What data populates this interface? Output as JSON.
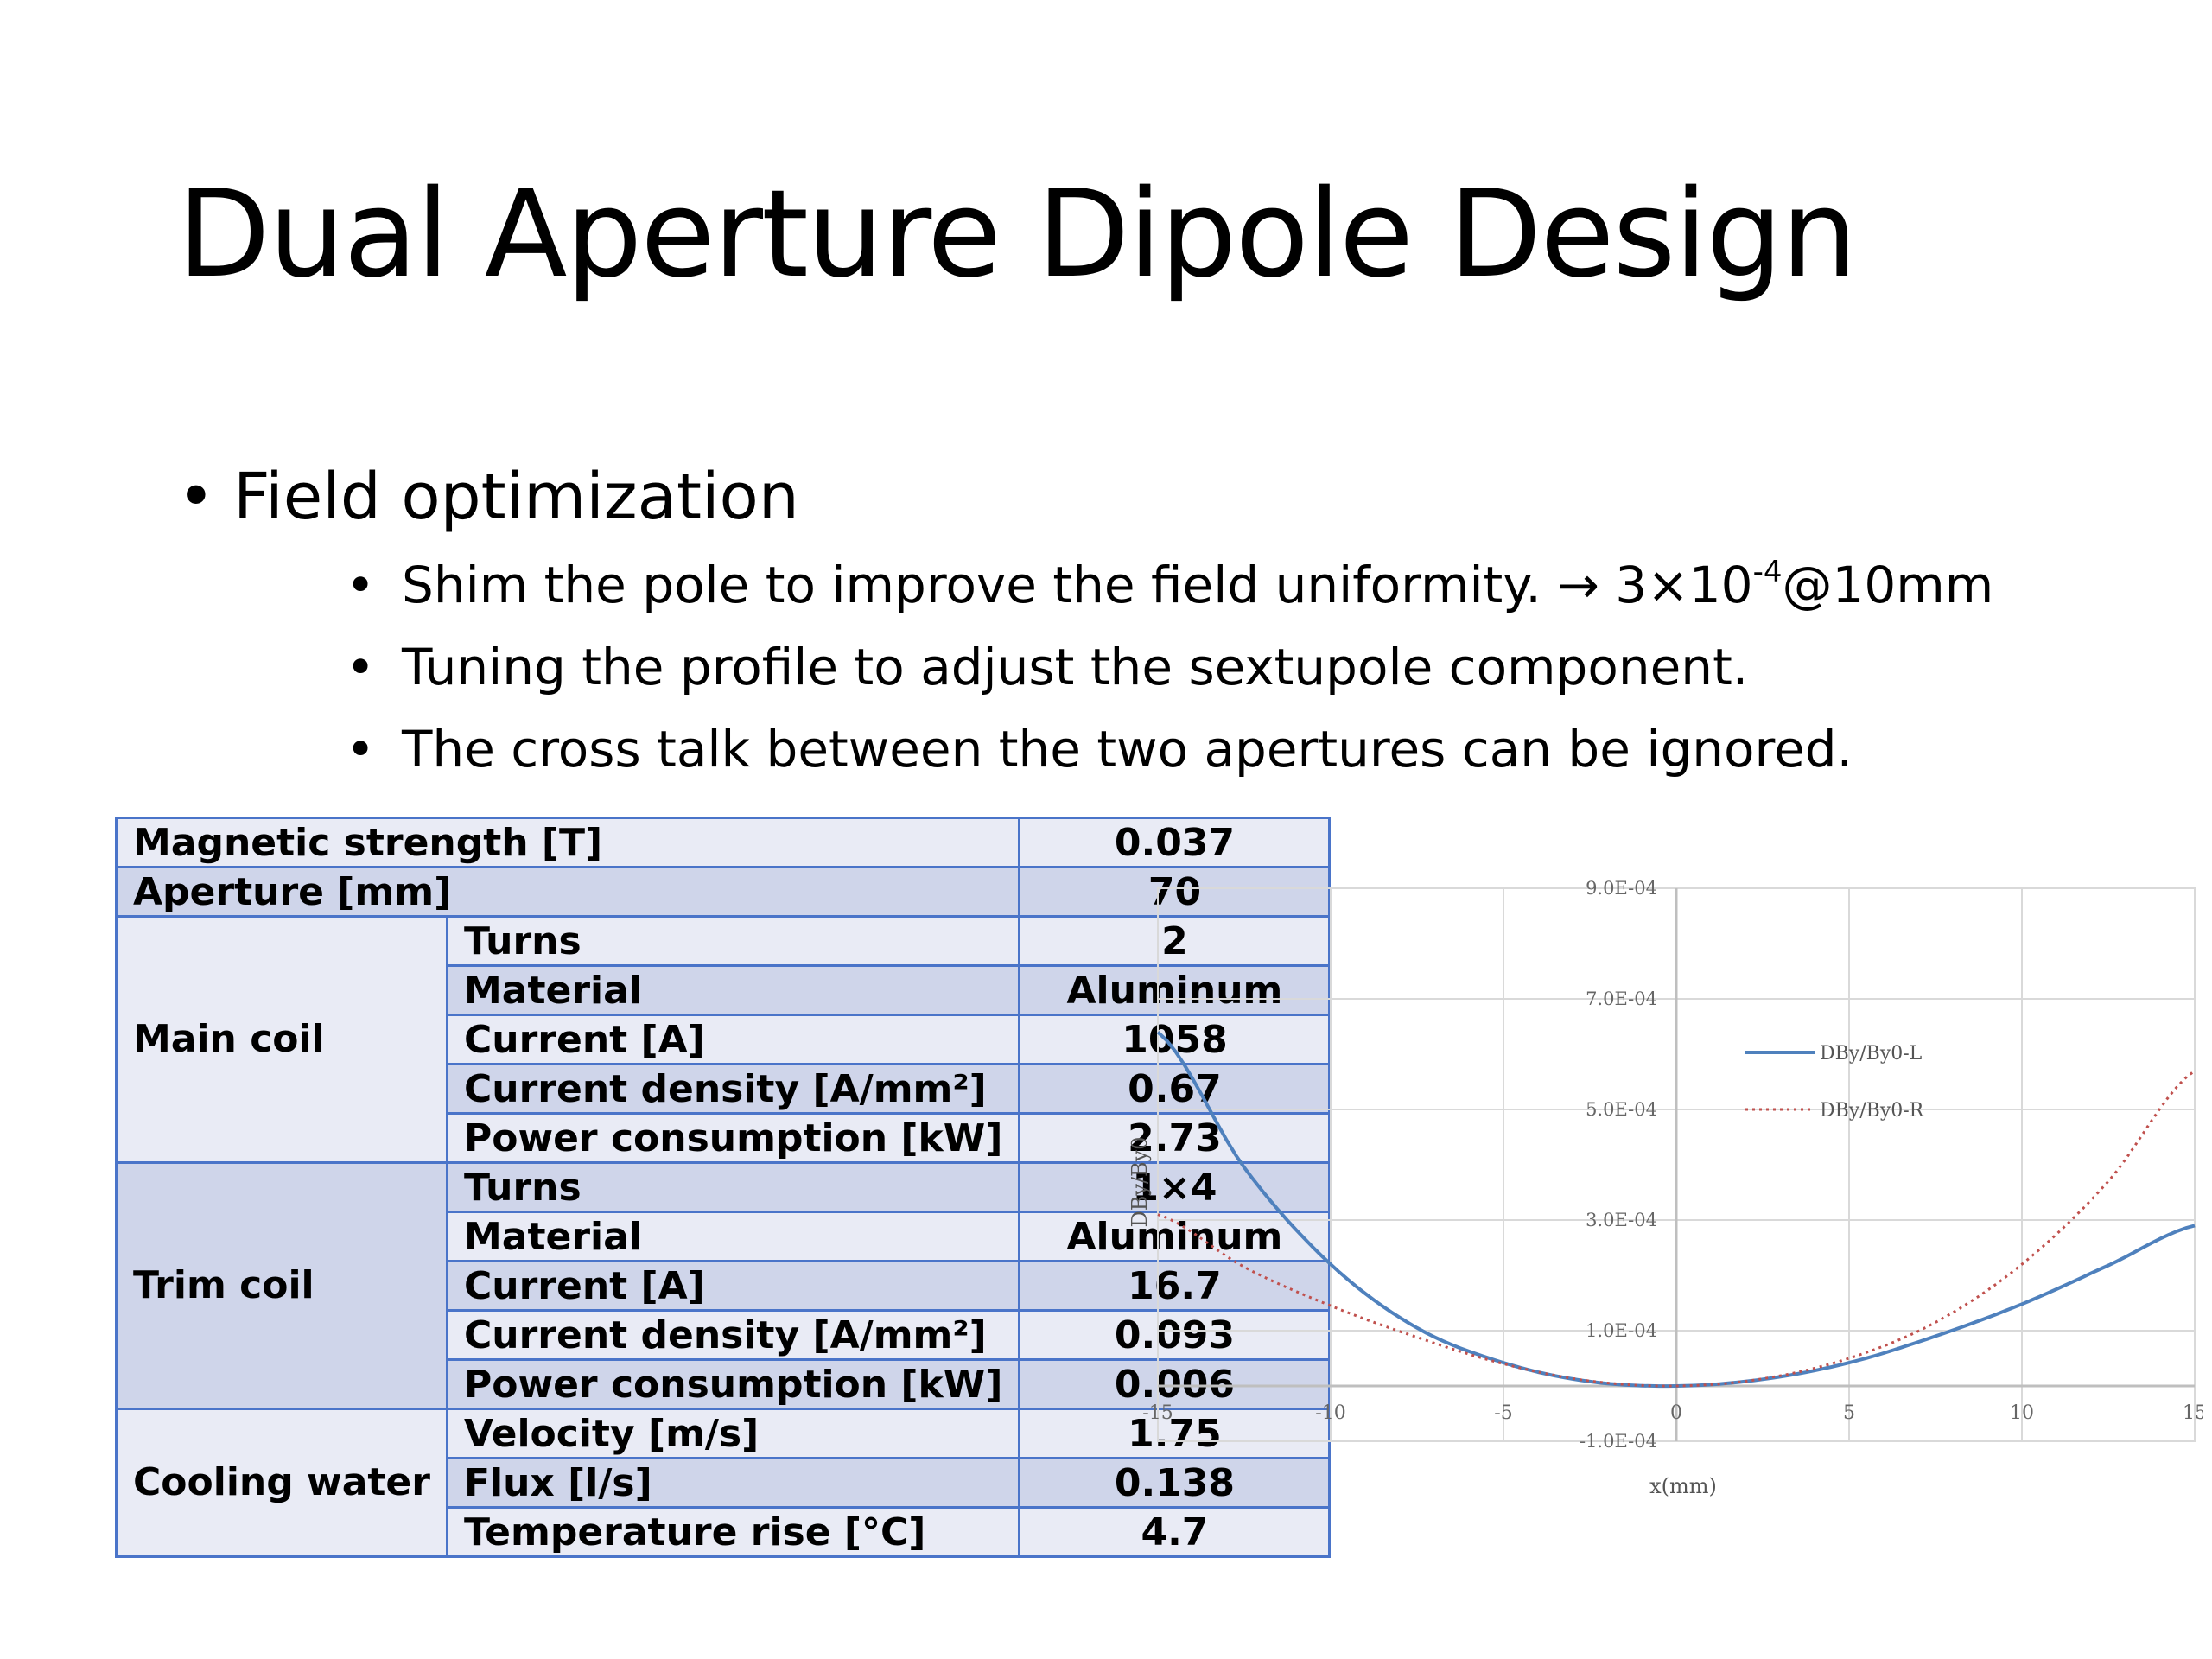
{
  "slide": {
    "title": "Dual Aperture Dipole Design",
    "bullet": "Field optimization",
    "sub_bullets": {
      "b1_pre": "Shim the pole to improve the field uniformity. → 3×10",
      "b1_exp": "-4",
      "b1_post": "@10mm",
      "b2": "Tuning the profile to adjust the sextupole component.",
      "b3": "The cross talk between the two apertures can be ignored."
    }
  },
  "table": {
    "r1": {
      "label": "Magnetic strength [T]",
      "value": "0.037"
    },
    "r2": {
      "label": "Aperture [mm]",
      "value": "70"
    },
    "main_coil": {
      "group": "Main coil",
      "rows": [
        {
          "label": "Turns",
          "value": "2"
        },
        {
          "label": "Material",
          "value": "Aluminum"
        },
        {
          "label": "Current [A]",
          "value": "1058"
        },
        {
          "label": "Current density [A/mm²]",
          "value": "0.67"
        },
        {
          "label": "Power consumption [kW]",
          "value": "2.73"
        }
      ]
    },
    "trim_coil": {
      "group": "Trim coil",
      "rows": [
        {
          "label": "Turns",
          "value": "1×4"
        },
        {
          "label": "Material",
          "value": "Aluminum"
        },
        {
          "label": "Current [A]",
          "value": "16.7"
        },
        {
          "label": "Current density [A/mm²]",
          "value": "0.093"
        },
        {
          "label": "Power consumption [kW]",
          "value": "0.006"
        }
      ]
    },
    "cooling": {
      "group": "Cooling water",
      "rows": [
        {
          "label": "Velocity [m/s]",
          "value": "1.75"
        },
        {
          "label": "Flux [l/s]",
          "value": "0.138"
        },
        {
          "label": "Temperature rise [°C]",
          "value": "4.7"
        }
      ]
    }
  },
  "chart_data": {
    "type": "line",
    "xlabel": "x(mm)",
    "ylabel": "DBy/By0",
    "xlim": [
      -15,
      15
    ],
    "ylim": [
      -0.0001,
      0.0009
    ],
    "x_ticks": [
      "-15",
      "-10",
      "-5",
      "0",
      "5",
      "10",
      "15"
    ],
    "y_ticks": [
      "-1.0E-04",
      "1.0E-04",
      "3.0E-04",
      "5.0E-04",
      "7.0E-04",
      "9.0E-04"
    ],
    "grid": true,
    "legend_position": "right",
    "series": [
      {
        "name": "DBy/By0-L",
        "color": "#4f81bd",
        "style": "solid",
        "x": [
          -15,
          -12.5,
          -10,
          -7.5,
          -5,
          -2.5,
          0,
          2.5,
          5,
          7.5,
          10,
          12.5,
          15
        ],
        "y": [
          0.00064,
          0.000395,
          0.00022,
          0.000105,
          4.2e-05,
          8e-06,
          0.0,
          1.2e-05,
          4.2e-05,
          9e-05,
          0.000148,
          0.000218,
          0.00029
        ]
      },
      {
        "name": "DBy/By0-R",
        "color": "#c0504d",
        "style": "dotted",
        "x": [
          -15,
          -12.5,
          -10,
          -7.5,
          -5,
          -2.5,
          0,
          2.5,
          5,
          7.5,
          10,
          12.5,
          15
        ],
        "y": [
          0.00031,
          0.000215,
          0.000145,
          8.8e-05,
          4e-05,
          9e-06,
          0.0,
          1.3e-05,
          5e-05,
          0.000115,
          0.00022,
          0.00037,
          0.00057
        ]
      }
    ]
  },
  "colors": {
    "table_border": "#4a74c9",
    "row_light": "#e9ebf5",
    "row_dark": "#cfd5ea"
  }
}
